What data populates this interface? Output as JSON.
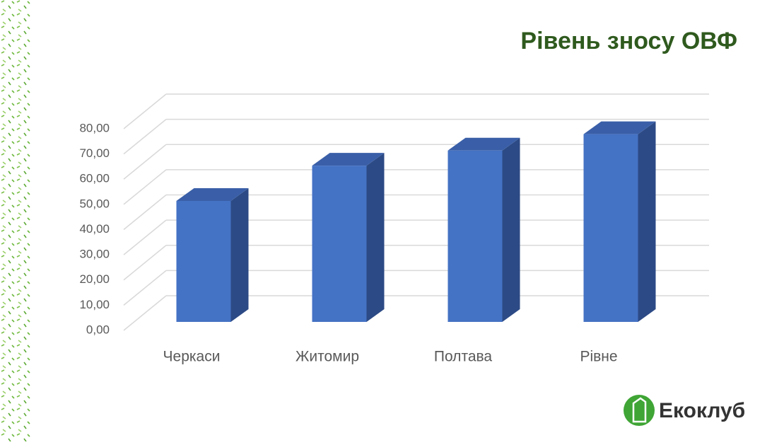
{
  "chart_data": {
    "type": "bar3d",
    "title": "Рівень зносу ОВФ",
    "categories": [
      "Черкаси",
      "Житомир",
      "Полтава",
      "Рівне"
    ],
    "values": [
      48,
      62,
      68,
      74.5
    ],
    "color": "#4472c4",
    "ylim": [
      0,
      80
    ],
    "yticks": [
      {
        "value": 0,
        "label": "0,00"
      },
      {
        "value": 10,
        "label": "10,00"
      },
      {
        "value": 20,
        "label": "20,00"
      },
      {
        "value": 30,
        "label": "30,00"
      },
      {
        "value": 40,
        "label": "40,00"
      },
      {
        "value": 50,
        "label": "50,00"
      },
      {
        "value": 60,
        "label": "60,00"
      },
      {
        "value": 70,
        "label": "70,00"
      },
      {
        "value": 80,
        "label": "80,00"
      }
    ],
    "grid": true
  },
  "logo": "Екоклуб"
}
